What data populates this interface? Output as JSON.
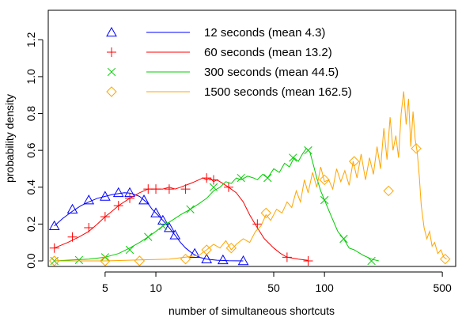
{
  "chart_data": {
    "type": "line",
    "title": "",
    "xlabel": "number of simultaneous shortcuts",
    "ylabel": "probability density",
    "x_scale": "log",
    "xlim": [
      2.3,
      600
    ],
    "ylim": [
      -0.03,
      1.36
    ],
    "x_ticks": [
      5,
      10,
      50,
      100,
      500
    ],
    "y_ticks": [
      0.0,
      0.2,
      0.4,
      0.6,
      0.8,
      1.0,
      1.2
    ],
    "grid": false,
    "legend_position": "top-left",
    "series": [
      {
        "name": "12 seconds (mean 4.3)",
        "color": "#0000ff",
        "marker": "triangle",
        "line": [
          [
            2.5,
            0.19
          ],
          [
            2.8,
            0.23
          ],
          [
            3.2,
            0.27
          ],
          [
            3.6,
            0.3
          ],
          [
            4.0,
            0.32
          ],
          [
            4.5,
            0.34
          ],
          [
            5.0,
            0.35
          ],
          [
            5.5,
            0.36
          ],
          [
            6.0,
            0.365
          ],
          [
            6.5,
            0.37
          ],
          [
            7.0,
            0.368
          ],
          [
            7.5,
            0.36
          ],
          [
            8.0,
            0.35
          ],
          [
            8.5,
            0.33
          ],
          [
            9.0,
            0.31
          ],
          [
            9.5,
            0.28
          ],
          [
            10.0,
            0.26
          ],
          [
            11.0,
            0.22
          ],
          [
            12.0,
            0.18
          ],
          [
            13.0,
            0.14
          ],
          [
            14.0,
            0.1
          ],
          [
            15.0,
            0.07
          ],
          [
            16.5,
            0.04
          ],
          [
            18.0,
            0.02
          ],
          [
            20.0,
            0.01
          ],
          [
            23.0,
            0.004
          ],
          [
            27.0,
            0.001
          ],
          [
            33.0,
            0.0
          ]
        ],
        "points": [
          [
            2.5,
            0.19
          ],
          [
            3.2,
            0.28
          ],
          [
            4.0,
            0.33
          ],
          [
            5.0,
            0.35
          ],
          [
            6.0,
            0.37
          ],
          [
            7.0,
            0.37
          ],
          [
            8.5,
            0.33
          ],
          [
            10.0,
            0.26
          ],
          [
            11.0,
            0.22
          ],
          [
            12.0,
            0.18
          ],
          [
            13.0,
            0.14
          ],
          [
            17.0,
            0.04
          ],
          [
            20.0,
            0.01
          ],
          [
            25.0,
            0.005
          ],
          [
            33.0,
            0.0
          ]
        ]
      },
      {
        "name": "60 seconds (mean 13.2)",
        "color": "#ff0000",
        "marker": "plus",
        "line": [
          [
            2.5,
            0.07
          ],
          [
            3.0,
            0.1
          ],
          [
            3.5,
            0.13
          ],
          [
            4.0,
            0.16
          ],
          [
            4.5,
            0.2
          ],
          [
            5.0,
            0.24
          ],
          [
            5.5,
            0.27
          ],
          [
            6.0,
            0.3
          ],
          [
            7.0,
            0.34
          ],
          [
            8.0,
            0.37
          ],
          [
            9.0,
            0.39
          ],
          [
            10.0,
            0.39
          ],
          [
            11.0,
            0.39
          ],
          [
            12.0,
            0.4
          ],
          [
            13.0,
            0.39
          ],
          [
            14.0,
            0.4
          ],
          [
            15.0,
            0.41
          ],
          [
            16.0,
            0.42
          ],
          [
            17.0,
            0.43
          ],
          [
            18.0,
            0.44
          ],
          [
            19.0,
            0.45
          ],
          [
            20.0,
            0.44
          ],
          [
            21.0,
            0.45
          ],
          [
            22.0,
            0.43
          ],
          [
            23.0,
            0.44
          ],
          [
            25.0,
            0.42
          ],
          [
            27.0,
            0.4
          ],
          [
            30.0,
            0.37
          ],
          [
            33.0,
            0.32
          ],
          [
            36.0,
            0.25
          ],
          [
            40.0,
            0.18
          ],
          [
            44.0,
            0.12
          ],
          [
            50.0,
            0.07
          ],
          [
            55.0,
            0.04
          ],
          [
            60.0,
            0.02
          ],
          [
            70.0,
            0.01
          ],
          [
            80.0,
            0.003
          ]
        ],
        "points": [
          [
            2.5,
            0.07
          ],
          [
            3.2,
            0.13
          ],
          [
            4.0,
            0.18
          ],
          [
            5.0,
            0.24
          ],
          [
            6.0,
            0.3
          ],
          [
            7.0,
            0.34
          ],
          [
            9.0,
            0.39
          ],
          [
            10.0,
            0.39
          ],
          [
            12.0,
            0.39
          ],
          [
            15.0,
            0.39
          ],
          [
            20.0,
            0.45
          ],
          [
            22.0,
            0.44
          ],
          [
            27.0,
            0.4
          ],
          [
            40.0,
            0.2
          ],
          [
            60.0,
            0.02
          ],
          [
            80.0,
            0.0
          ]
        ]
      },
      {
        "name": "300 seconds (mean 44.5)",
        "color": "#00cc00",
        "marker": "x",
        "line": [
          [
            2.5,
            0.0
          ],
          [
            3.2,
            0.005
          ],
          [
            4.0,
            0.01
          ],
          [
            5.0,
            0.02
          ],
          [
            6.0,
            0.04
          ],
          [
            7.0,
            0.07
          ],
          [
            8.0,
            0.1
          ],
          [
            9.0,
            0.13
          ],
          [
            10.0,
            0.16
          ],
          [
            11.0,
            0.19
          ],
          [
            12.0,
            0.21
          ],
          [
            14.0,
            0.25
          ],
          [
            16.0,
            0.28
          ],
          [
            18.0,
            0.31
          ],
          [
            20.0,
            0.34
          ],
          [
            22.0,
            0.38
          ],
          [
            24.0,
            0.4
          ],
          [
            26.0,
            0.43
          ],
          [
            28.0,
            0.42
          ],
          [
            30.0,
            0.45
          ],
          [
            32.0,
            0.44
          ],
          [
            35.0,
            0.46
          ],
          [
            38.0,
            0.45
          ],
          [
            40.0,
            0.44
          ],
          [
            43.0,
            0.47
          ],
          [
            46.0,
            0.45
          ],
          [
            50.0,
            0.5
          ],
          [
            54.0,
            0.48
          ],
          [
            58.0,
            0.53
          ],
          [
            62.0,
            0.51
          ],
          [
            66.0,
            0.56
          ],
          [
            70.0,
            0.54
          ],
          [
            74.0,
            0.58
          ],
          [
            78.0,
            0.61
          ],
          [
            82.0,
            0.59
          ],
          [
            86.0,
            0.52
          ],
          [
            90.0,
            0.45
          ],
          [
            95.0,
            0.38
          ],
          [
            100.0,
            0.33
          ],
          [
            110.0,
            0.24
          ],
          [
            120.0,
            0.16
          ],
          [
            130.0,
            0.12
          ],
          [
            140.0,
            0.07
          ],
          [
            150.0,
            0.06
          ],
          [
            170.0,
            0.03
          ],
          [
            190.0,
            0.01
          ],
          [
            210.0,
            0.0
          ]
        ],
        "points": [
          [
            2.5,
            0.0
          ],
          [
            3.5,
            0.005
          ],
          [
            5.0,
            0.02
          ],
          [
            7.0,
            0.06
          ],
          [
            9.0,
            0.13
          ],
          [
            11.0,
            0.19
          ],
          [
            16.0,
            0.28
          ],
          [
            22.0,
            0.4
          ],
          [
            32.0,
            0.45
          ],
          [
            46.0,
            0.45
          ],
          [
            65.0,
            0.56
          ],
          [
            80.0,
            0.6
          ],
          [
            100.0,
            0.33
          ],
          [
            130.0,
            0.12
          ],
          [
            190.0,
            0.0
          ]
        ]
      },
      {
        "name": "1500 seconds (mean 162.5)",
        "color": "#ffa500",
        "marker": "diamond",
        "line": [
          [
            2.5,
            0.0
          ],
          [
            5.0,
            0.0
          ],
          [
            8.0,
            0.005
          ],
          [
            12.0,
            0.01
          ],
          [
            15.0,
            0.02
          ],
          [
            18.0,
            0.03
          ],
          [
            20.0,
            0.06
          ],
          [
            22.0,
            0.09
          ],
          [
            24.0,
            0.07
          ],
          [
            26.0,
            0.11
          ],
          [
            28.0,
            0.06
          ],
          [
            30.0,
            0.09
          ],
          [
            33.0,
            0.12
          ],
          [
            36.0,
            0.1
          ],
          [
            39.0,
            0.16
          ],
          [
            42.0,
            0.19
          ],
          [
            45.0,
            0.25
          ],
          [
            48.0,
            0.22
          ],
          [
            52.0,
            0.28
          ],
          [
            56.0,
            0.26
          ],
          [
            60.0,
            0.32
          ],
          [
            64.0,
            0.29
          ],
          [
            68.0,
            0.38
          ],
          [
            72.0,
            0.32
          ],
          [
            76.0,
            0.44
          ],
          [
            80.0,
            0.37
          ],
          [
            85.0,
            0.48
          ],
          [
            90.0,
            0.4
          ],
          [
            95.0,
            0.51
          ],
          [
            100.0,
            0.43
          ],
          [
            106.0,
            0.44
          ],
          [
            112.0,
            0.39
          ],
          [
            118.0,
            0.5
          ],
          [
            125.0,
            0.43
          ],
          [
            132.0,
            0.49
          ],
          [
            140.0,
            0.41
          ],
          [
            148.0,
            0.54
          ],
          [
            156.0,
            0.45
          ],
          [
            165.0,
            0.58
          ],
          [
            175.0,
            0.44
          ],
          [
            185.0,
            0.56
          ],
          [
            195.0,
            0.47
          ],
          [
            205.0,
            0.62
          ],
          [
            215.0,
            0.5
          ],
          [
            225.0,
            0.72
          ],
          [
            235.0,
            0.55
          ],
          [
            245.0,
            0.78
          ],
          [
            255.0,
            0.6
          ],
          [
            265.0,
            0.68
          ],
          [
            275.0,
            0.56
          ],
          [
            285.0,
            0.8
          ],
          [
            295.0,
            0.92
          ],
          [
            305.0,
            0.74
          ],
          [
            315.0,
            0.88
          ],
          [
            325.0,
            0.62
          ],
          [
            335.0,
            0.81
          ],
          [
            345.0,
            0.66
          ],
          [
            355.0,
            0.59
          ],
          [
            365.0,
            0.46
          ],
          [
            375.0,
            0.3
          ],
          [
            390.0,
            0.18
          ],
          [
            405.0,
            0.12
          ],
          [
            420.0,
            0.16
          ],
          [
            435.0,
            0.08
          ],
          [
            450.0,
            0.1
          ],
          [
            470.0,
            0.04
          ],
          [
            490.0,
            0.06
          ],
          [
            510.0,
            0.02
          ],
          [
            530.0,
            0.01
          ]
        ],
        "points": [
          [
            2.5,
            0.0
          ],
          [
            5.0,
            0.0
          ],
          [
            8.0,
            0.0
          ],
          [
            15.0,
            0.01
          ],
          [
            20.0,
            0.06
          ],
          [
            28.0,
            0.07
          ],
          [
            45.0,
            0.26
          ],
          [
            100.0,
            0.44
          ],
          [
            150.0,
            0.54
          ],
          [
            240.0,
            0.38
          ],
          [
            350.0,
            0.61
          ],
          [
            520.0,
            0.01
          ]
        ]
      }
    ]
  }
}
